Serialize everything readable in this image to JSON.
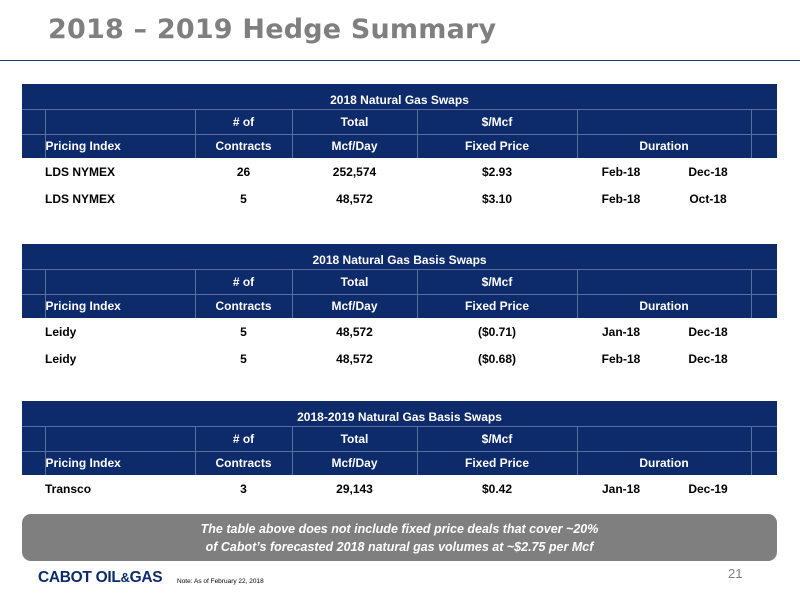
{
  "page": {
    "title": "2018 – 2019 Hedge Summary",
    "page_number": "21",
    "footnote": "Note: As of February 22, 2018",
    "logo_text_main": "CABOT OIL",
    "logo_text_amp": "&",
    "logo_text_end": "GAS"
  },
  "header_labels": {
    "num_of": "# of",
    "total": "Total",
    "per_mcf": "$/Mcf",
    "pricing_index": "Pricing Index",
    "contracts": "Contracts",
    "mcf_day": "Mcf/Day",
    "fixed_price": "Fixed Price",
    "duration": "Duration"
  },
  "tables": [
    {
      "title": "2018 Natural Gas Swaps",
      "rows": [
        {
          "index": "LDS NYMEX",
          "contracts": "26",
          "mcf_day": "252,574",
          "price": "$2.93",
          "start": "Feb-18",
          "end": "Dec-18"
        },
        {
          "index": "LDS NYMEX",
          "contracts": "5",
          "mcf_day": "48,572",
          "price": "$3.10",
          "start": "Feb-18",
          "end": "Oct-18"
        }
      ]
    },
    {
      "title": "2018 Natural Gas Basis Swaps",
      "rows": [
        {
          "index": "Leidy",
          "contracts": "5",
          "mcf_day": "48,572",
          "price": "($0.71)",
          "start": "Jan-18",
          "end": "Dec-18"
        },
        {
          "index": "Leidy",
          "contracts": "5",
          "mcf_day": "48,572",
          "price": "($0.68)",
          "start": "Feb-18",
          "end": "Dec-18"
        }
      ]
    },
    {
      "title": "2018-2019 Natural Gas Basis Swaps",
      "rows": [
        {
          "index": "Transco",
          "contracts": "3",
          "mcf_day": "29,143",
          "price": "$0.42",
          "start": "Jan-18",
          "end": "Dec-19"
        }
      ]
    }
  ],
  "note": {
    "line1": "The table above does not include fixed price deals that cover ~20%",
    "line2": "of Cabot’s forecasted 2018 natural gas volumes at ~$2.75 per Mcf"
  },
  "colors": {
    "header_band": "#0d2a6b",
    "title_gray": "#7f7f7f",
    "note_box": "#7f7f7f"
  }
}
